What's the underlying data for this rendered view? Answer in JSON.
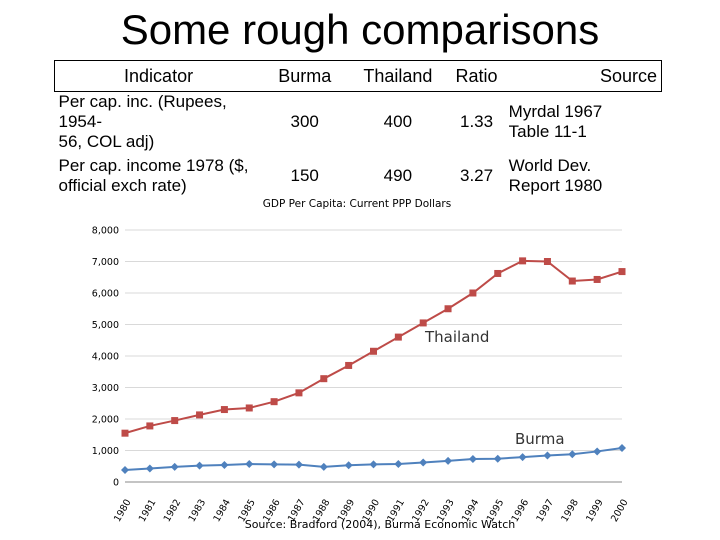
{
  "slide": {
    "title": "Some rough comparisons"
  },
  "table": {
    "headers": [
      "Indicator",
      "Burma",
      "Thailand",
      "Ratio",
      "",
      "Source"
    ],
    "rows": [
      {
        "indicator": [
          "Per cap. inc. (Rupees, 1954-",
          "56, COL adj)"
        ],
        "burma": "300",
        "thailand": "400",
        "ratio": "1.33",
        "source": [
          "Myrdal 1967",
          "Table 11-1"
        ]
      },
      {
        "indicator": [
          "Per cap. income 1978 ($,",
          "official exch rate)"
        ],
        "burma": "150",
        "thailand": "490",
        "ratio": "3.27",
        "source": [
          "World Dev.",
          "Report 1980"
        ]
      }
    ]
  },
  "chart_data": {
    "type": "line",
    "title": "GDP Per Capita: Current PPP Dollars",
    "source": "Source: Bradford (2004), Burma Economic Watch",
    "x": [
      "1980",
      "1981",
      "1982",
      "1983",
      "1984",
      "1985",
      "1986",
      "1987",
      "1988",
      "1989",
      "1990",
      "1991",
      "1992",
      "1993",
      "1994",
      "1995",
      "1996",
      "1997",
      "1998",
      "1999",
      "2000"
    ],
    "x_tick_labels": [
      "1980",
      "1981",
      "1982",
      "1983",
      "1984",
      "1985",
      "1986",
      "1987",
      "1988",
      "1989",
      "1990",
      "1991",
      "1992",
      "1993",
      "1994",
      "1995",
      "1996",
      "1997",
      "1998",
      "1999",
      "2000"
    ],
    "y_ticks": [
      0,
      1000,
      2000,
      3000,
      4000,
      5000,
      6000,
      7000,
      8000
    ],
    "y_tick_labels": [
      "0",
      "1,000",
      "2,000",
      "3,000",
      "4,000",
      "5,000",
      "6,000",
      "7,000",
      "8,000"
    ],
    "ylim": [
      0,
      8000
    ],
    "grid": "horizontal",
    "series": [
      {
        "name": "Thailand",
        "color": "#be4b48",
        "marker": "square",
        "values": [
          1550,
          1780,
          1950,
          2130,
          2300,
          2350,
          2550,
          2830,
          3280,
          3700,
          4150,
          4600,
          5050,
          5500,
          6000,
          6620,
          7020,
          7000,
          6380,
          6430,
          6680
        ]
      },
      {
        "name": "Burma",
        "color": "#4f81bd",
        "marker": "diamond",
        "values": [
          380,
          430,
          480,
          520,
          540,
          570,
          560,
          550,
          480,
          530,
          560,
          570,
          620,
          670,
          730,
          740,
          790,
          840,
          880,
          970,
          1080
        ]
      }
    ]
  }
}
